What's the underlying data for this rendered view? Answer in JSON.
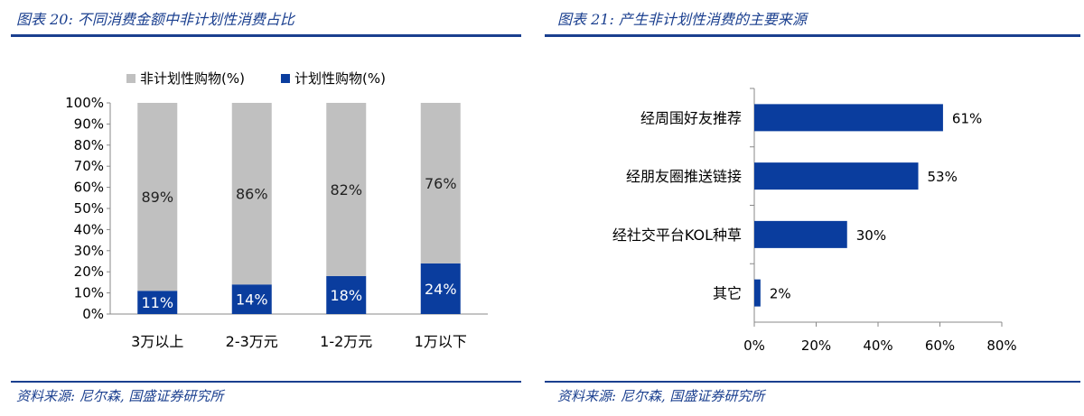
{
  "left": {
    "title": "图表 20:  不同消费金额中非计划性消费占比",
    "source": "资料来源:  尼尔森, 国盛证券研究所"
  },
  "right": {
    "title": "图表 21:  产生非计划性消费的主要来源",
    "source": "资料来源:  尼尔森, 国盛证券研究所"
  },
  "chart_data": [
    {
      "type": "bar",
      "stacked": true,
      "categories": [
        "3万以上",
        "2-3万元",
        "1-2万元",
        "1万以下"
      ],
      "series": [
        {
          "name": "计划性购物(%)",
          "values": [
            11,
            14,
            18,
            24
          ],
          "labels": [
            "11%",
            "14%",
            "18%",
            "24%"
          ],
          "color": "#0a3d9e"
        },
        {
          "name": "非计划性购物(%)",
          "values": [
            89,
            86,
            82,
            76
          ],
          "labels": [
            "89%",
            "86%",
            "82%",
            "76%"
          ],
          "color": "#c0c0c0"
        }
      ],
      "ylim": [
        0,
        100
      ],
      "yticks": [
        "0%",
        "10%",
        "20%",
        "30%",
        "40%",
        "50%",
        "60%",
        "70%",
        "80%",
        "90%",
        "100%"
      ],
      "legend": "top",
      "grid": false
    },
    {
      "type": "bar",
      "orientation": "horizontal",
      "categories": [
        "经周围好友推荐",
        "经朋友圈推送链接",
        "经社交平台KOL种草",
        "其它"
      ],
      "values": [
        61,
        53,
        30,
        2
      ],
      "labels": [
        "61%",
        "53%",
        "30%",
        "2%"
      ],
      "color": "#0a3d9e",
      "xlim": [
        0,
        80
      ],
      "xticks": [
        "0%",
        "20%",
        "40%",
        "60%",
        "80%"
      ],
      "grid": false
    }
  ]
}
